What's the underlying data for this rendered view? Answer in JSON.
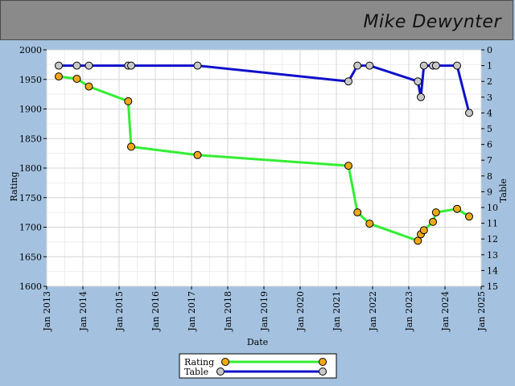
{
  "header": {
    "name": "Mike Dewynter"
  },
  "chart_data": {
    "type": "line",
    "xlabel": "Date",
    "ylabel": "Rating",
    "y2label": "Table",
    "xlim": [
      "2013-01",
      "2025-01"
    ],
    "ylim": [
      1600,
      2000
    ],
    "y2lim": [
      0,
      15
    ],
    "y2_inverted": true,
    "grid": true,
    "x_ticks": [
      "Jan 2013",
      "Jan 2014",
      "Jan 2015",
      "Jan 2016",
      "Jan 2017",
      "Jan 2018",
      "Jan 2019",
      "Jan 2020",
      "Jan 2021",
      "Jan 2022",
      "Jan 2023",
      "Jan 2024",
      "Jan 2025"
    ],
    "y_ticks": [
      1600,
      1650,
      1700,
      1750,
      1800,
      1850,
      1900,
      1950,
      2000
    ],
    "y2_ticks": [
      0,
      1,
      2,
      3,
      4,
      5,
      6,
      7,
      8,
      9,
      10,
      11,
      12,
      13,
      14,
      15
    ],
    "legend_position": "bottom-center",
    "colors": {
      "rating_line": "#33ee33",
      "rating_marker": "#f0a818",
      "table_line": "#1010cc",
      "table_marker": "#c8c8c8"
    },
    "series": [
      {
        "name": "Rating",
        "axis": "left",
        "points": [
          [
            "2013-05",
            1955
          ],
          [
            "2013-11",
            1951
          ],
          [
            "2014-03",
            1938
          ],
          [
            "2015-04",
            1913
          ],
          [
            "2015-05",
            1836
          ],
          [
            "2017-03",
            1822
          ],
          [
            "2021-05",
            1804
          ],
          [
            "2021-08",
            1725
          ],
          [
            "2021-12",
            1706
          ],
          [
            "2023-04",
            1677
          ],
          [
            "2023-05",
            1688
          ],
          [
            "2023-06",
            1695
          ],
          [
            "2023-09",
            1709
          ],
          [
            "2023-10",
            1725
          ],
          [
            "2024-05",
            1731
          ],
          [
            "2024-09",
            1718
          ]
        ]
      },
      {
        "name": "Table",
        "axis": "right",
        "points": [
          [
            "2013-05",
            1
          ],
          [
            "2013-11",
            1
          ],
          [
            "2014-03",
            1
          ],
          [
            "2015-04",
            1
          ],
          [
            "2015-05",
            1
          ],
          [
            "2017-03",
            1
          ],
          [
            "2021-05",
            2
          ],
          [
            "2021-08",
            1
          ],
          [
            "2021-12",
            1
          ],
          [
            "2023-04",
            2
          ],
          [
            "2023-05",
            3
          ],
          [
            "2023-06",
            1
          ],
          [
            "2023-09",
            1
          ],
          [
            "2023-10",
            1
          ],
          [
            "2024-05",
            1
          ],
          [
            "2024-09",
            4
          ]
        ]
      }
    ]
  }
}
